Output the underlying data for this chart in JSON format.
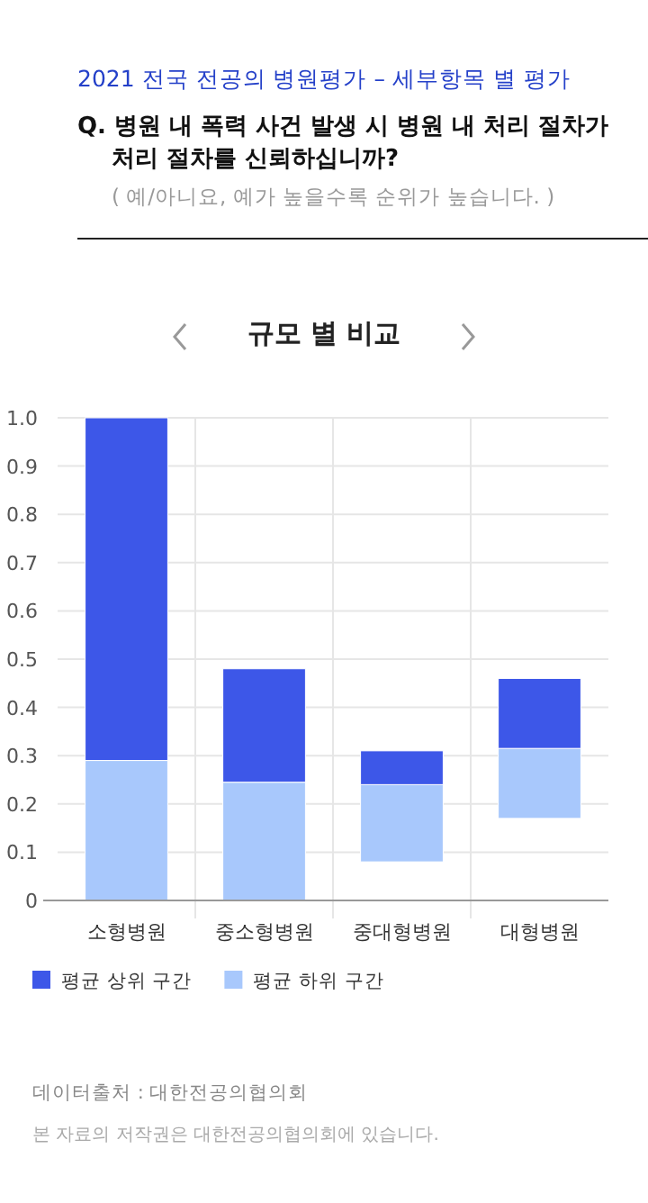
{
  "chart_data": {
    "type": "bar",
    "title": "2021 전국 전공의 병원평가 – 세부항목 별 평가",
    "subtitle": "Q. 병원 내 폭력 사건 발생 시 병원 내 처리 절차가 처리 절차를 신뢰하십니까?",
    "annotations": [
      "( 예/아니요, 예가 높을수록 순위가 높습니다. )",
      "규모 별 비교",
      "데이터출처 : 대한전공의협의회",
      "본 자료의 저작권은 대한전공의협의회에 있습니다."
    ],
    "categories": [
      "소형병원",
      "중소형병원",
      "중대형병원",
      "대형병원"
    ],
    "series": [
      {
        "name": "평균 하위 구간",
        "color": "#a8c8fc",
        "base": [
          0,
          0,
          0.08,
          0.17
        ],
        "values": [
          0.29,
          0.245,
          0.16,
          0.145
        ]
      },
      {
        "name": "평균 상위 구간",
        "color": "#3d57e8",
        "base": [
          0.29,
          0.245,
          0.24,
          0.315
        ],
        "values": [
          0.71,
          0.235,
          0.07,
          0.145
        ]
      }
    ],
    "ylim": [
      0,
      1
    ],
    "yticks": [
      0,
      0.1,
      0.2,
      0.3,
      0.4,
      0.5,
      0.6,
      0.7,
      0.8,
      0.9,
      {
        "value": 1,
        "label": "1.0"
      }
    ],
    "grid": true,
    "legend": "bottom left"
  }
}
